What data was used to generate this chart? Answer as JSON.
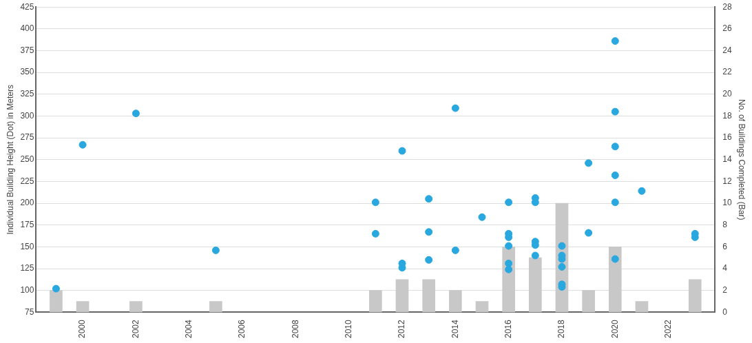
{
  "chart_data": {
    "type": "scatter",
    "ylabel": "Individual Building Height (Dot) in Meters",
    "y2label": "No. of Buildings Completed (Bar)",
    "xlim": [
      1998.25,
      2023.75
    ],
    "xticks": [
      2000,
      2002,
      2004,
      2006,
      2008,
      2010,
      2012,
      2014,
      2016,
      2018,
      2020,
      2022
    ],
    "ylim": [
      75,
      425
    ],
    "yticks": [
      75,
      100,
      125,
      150,
      175,
      200,
      225,
      250,
      275,
      300,
      325,
      350,
      375,
      400,
      425
    ],
    "y2lim": [
      0,
      28
    ],
    "y2ticks": [
      0,
      2,
      4,
      6,
      8,
      10,
      12,
      14,
      16,
      18,
      20,
      22,
      24,
      26,
      28
    ],
    "grid": "y",
    "legend": false,
    "marker": "circle",
    "series": [
      {
        "type": "bar",
        "axis": "y2",
        "color": "#c8c8c8",
        "x": [
          1999,
          2000,
          2002,
          2005,
          2011,
          2012,
          2013,
          2014,
          2015,
          2016,
          2017,
          2018,
          2019,
          2020,
          2021,
          2023
        ],
        "values": [
          2,
          1,
          1,
          1,
          2,
          3,
          3,
          2,
          1,
          6,
          5,
          10,
          2,
          6,
          1,
          3
        ]
      },
      {
        "color": "#29a8e0",
        "x": [
          1999,
          2000,
          2002,
          2005,
          2011,
          2011,
          2012,
          2012,
          2012,
          2013,
          2013,
          2013,
          2014,
          2014,
          2015,
          2016,
          2016,
          2016,
          2016,
          2016,
          2016,
          2017,
          2017,
          2017,
          2017,
          2017,
          2018,
          2018,
          2018,
          2018,
          2018,
          2018,
          2019,
          2019,
          2020,
          2020,
          2020,
          2020,
          2020,
          2020,
          2021,
          2023,
          2023
        ],
        "values": [
          102,
          267,
          303,
          146,
          201,
          165,
          260,
          131,
          126,
          205,
          167,
          135,
          309,
          146,
          184,
          201,
          165,
          161,
          151,
          131,
          124,
          206,
          201,
          156,
          152,
          140,
          151,
          140,
          136,
          127,
          107,
          104,
          246,
          166,
          386,
          305,
          265,
          232,
          201,
          136,
          214,
          165,
          161
        ]
      }
    ]
  }
}
